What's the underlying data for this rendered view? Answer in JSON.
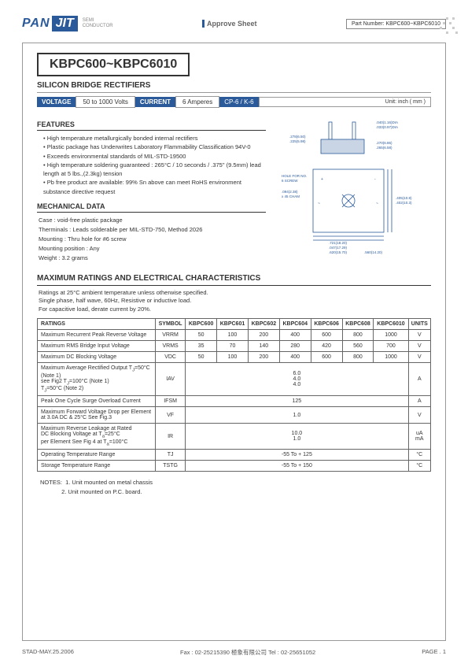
{
  "header": {
    "logo_text": "PAN",
    "logo_jit": "JIT",
    "logo_sub1": "SEMI",
    "logo_sub2": "CONDUCTOR",
    "approve": "Approve Sheet",
    "partnum_label": "Part Number:",
    "partnum": "KBPC600~KBPC6010"
  },
  "title": "KBPC600~KBPC6010",
  "subtitle": "SILICON BRIDGE RECTIFIERS",
  "spec": {
    "voltage_label": "VOLTAGE",
    "voltage": "50 to 1000 Volts",
    "current_label": "CURRENT",
    "current": "6 Amperes",
    "package": "CP-6 / K-6",
    "unit": "Unit: inch ( mm )"
  },
  "features": {
    "head": "FEATURES",
    "items": [
      "High temperature metallurgically bonded internal rectifiers",
      "Plastic package has Underwrites Laboratory Flammability Classification 94V-0",
      "Exceeds environmental standards of MIL-STD-19500",
      "High temperature soldering guaranteed : 265°C / 10 seconds / .375\" (9.5mm) lead length at 5 lbs.,(2.3kg) tension",
      "Pb free product are available: 99% Sn above can meet RoHS environment substance directive request"
    ]
  },
  "mechanical": {
    "head": "MECHANICAL DATA",
    "case": "Case : void-free plastic package",
    "terminals": "Therminals : Leads solderable per MIL-STD-750, Method 2026",
    "mounting": "Mounting : Thru hole for #6 screw",
    "position": "Mounting position :  Any",
    "weight": "Weight : 3.2 grams"
  },
  "diagram_labels": {
    "d1": ".040(1.16)DIA",
    "d2": ".033(0.97)DIA",
    "d3": ".270(6.86)",
    "d4": ".265(6.58)",
    "d5": ".278(6.50)",
    "d6": ".225(5.98)",
    "hole": "HOLE FOR NO.",
    "screw": "6 SCREW",
    "cham": ".094(2.38)",
    "cham2": "x 45 CHAM",
    "h1": ".405(10.8)",
    "h2": ".402(10.3)",
    "bot1": ".721(18.20)",
    "bot2": ".047(17.29)",
    "bot3": ".620(15.70)",
    "bot4": ".560(14.20)",
    "ac1": "~ AC",
    "ac2": "~ AC"
  },
  "maxratings": {
    "head": "MAXIMUM RATINGS AND ELECTRICAL CHARACTERISTICS",
    "note1": "Ratings at 25°C ambient temperature unless otherwise specified.",
    "note2": "Single phase, half wave, 60Hz, Resistive or inductive load.",
    "note3": "For capacitive load, derate current by 20%."
  },
  "table": {
    "headers": [
      "RATINGS",
      "SYMBOL",
      "KBPC600",
      "KBPC601",
      "KBPC602",
      "KBPC604",
      "KBPC606",
      "KBPC608",
      "KBPC6010",
      "UNITS"
    ],
    "rows": [
      {
        "rating": "Maximum Recurrent Peak Reverse Voltage",
        "symbol": "VRRM",
        "vals": [
          "50",
          "100",
          "200",
          "400",
          "600",
          "800",
          "1000"
        ],
        "unit": "V"
      },
      {
        "rating": "Maximum RMS Bridge Input Voltage",
        "symbol": "VRMS",
        "vals": [
          "35",
          "70",
          "140",
          "280",
          "420",
          "560",
          "700"
        ],
        "unit": "V"
      },
      {
        "rating": "Maximum DC Blocking Voltage",
        "symbol": "VDC",
        "vals": [
          "50",
          "100",
          "200",
          "400",
          "600",
          "800",
          "1000"
        ],
        "unit": "V"
      },
      {
        "rating": "Maximum Average Rectified Output  T<sub>J</sub>=50°C (Note 1)\nsee Fig2                                T<sub>J</sub>=100°C (Note 1)\n                                                 T<sub>J</sub>=50°C (Note 2)",
        "symbol": "IAV",
        "merged": "6.0\n4.0\n4.0",
        "unit": "A"
      },
      {
        "rating": "Peak One Cycle Surge Overload Current",
        "symbol": "IFSM",
        "merged": "125",
        "unit": "A"
      },
      {
        "rating": "Maximum Forward Voltage Drop per Element at 3.0A DC & 25°C See Fig.3",
        "symbol": "VF",
        "merged": "1.0",
        "unit": "V"
      },
      {
        "rating": "Maximum Reverse Leakage at Rated\nDC Blocking Voltage at T<sub>a</sub>=25°C\nper Element See Fig 4 at T<sub>a</sub>=100°C",
        "symbol": "IR",
        "merged": "10.0\n1.0",
        "unit": "uA\nmA"
      },
      {
        "rating": "Operating Temperature Range",
        "symbol": "TJ",
        "merged": "-55 To + 125",
        "unit": "°C"
      },
      {
        "rating": "Storage Temperature Range",
        "symbol": "TSTG",
        "merged": "-55 To + 150",
        "unit": "°C"
      }
    ]
  },
  "notes": {
    "label": "NOTES:",
    "n1": "1. Unit mounted on metal chassis",
    "n2": "2. Unit mounted on P.C. board."
  },
  "footer": {
    "date": "STAD-MAY.25.2006",
    "fax": "Fax : 02-25215390    極象有限公司    Tel : 02-25651052",
    "page": "PAGE . 1"
  },
  "colors": {
    "brand": "#2a5a9a",
    "border": "#999999",
    "text": "#333333"
  }
}
